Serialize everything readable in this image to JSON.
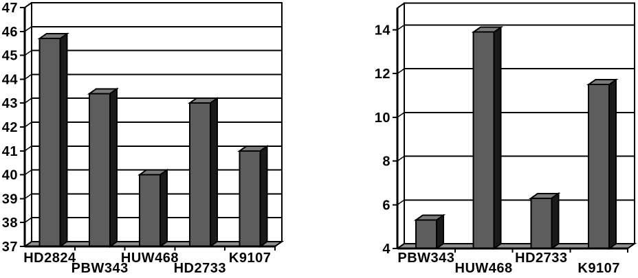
{
  "page": {
    "background": "#ffffff",
    "description": "Two 3D-style grayscale bar charts side by side comparing wheat genotypes"
  },
  "colors": {
    "bar_front": "#5d5d5d",
    "bar_top": "#7a7a7a",
    "bar_side": "#1a1a1a",
    "floor": "#8f8f8f",
    "wall": "#ffffff",
    "line": "#000000",
    "background": "#ffffff",
    "label": "#000000"
  },
  "chart_data": [
    {
      "type": "bar",
      "title": "",
      "xlabel": "",
      "ylabel": "",
      "categories": [
        "HD2824",
        "PBW343",
        "HUW468",
        "HD2733",
        "K9107"
      ],
      "values": [
        45.7,
        43.4,
        40.0,
        43.0,
        41.0
      ],
      "ylim": [
        37,
        47
      ],
      "ytick_step": 1,
      "yticks": [
        37,
        38,
        39,
        40,
        41,
        42,
        43,
        44,
        45,
        46,
        47
      ],
      "grid": true,
      "legend": false,
      "style": "3d-column"
    },
    {
      "type": "bar",
      "title": "",
      "xlabel": "",
      "ylabel": "",
      "categories": [
        "PBW343",
        "HUW468",
        "HD2733",
        "K9107"
      ],
      "values": [
        5.3,
        13.9,
        6.3,
        11.5
      ],
      "ylim": [
        4,
        15
      ],
      "ytick_step": 2,
      "yticks": [
        4,
        6,
        8,
        10,
        12,
        14
      ],
      "grid": true,
      "legend": false,
      "style": "3d-column"
    }
  ]
}
